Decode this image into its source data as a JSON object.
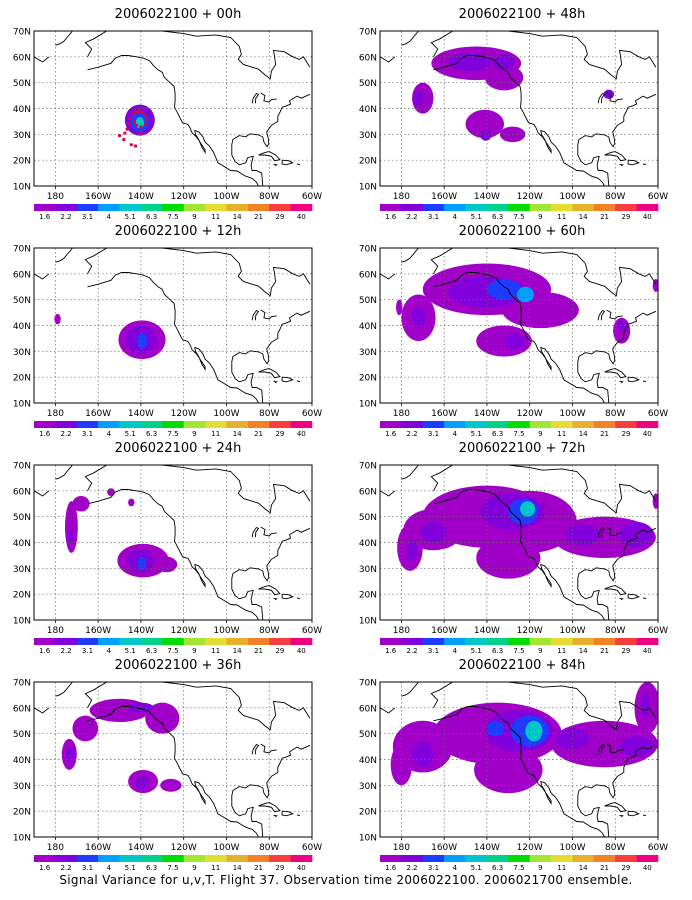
{
  "figure": {
    "caption": "Signal Variance for u,v,T. Flight 37. Observation time 2006022100. 2006021700 ensemble."
  },
  "colorbar": {
    "labels": [
      "1.6",
      "2.2",
      "3.1",
      "4",
      "5.1",
      "6.3",
      "7.5",
      "9",
      "11",
      "14",
      "21",
      "29",
      "40"
    ],
    "colors": [
      "#a000c8",
      "#8200dc",
      "#1e3cff",
      "#00a0ff",
      "#00c8c8",
      "#00d28c",
      "#00dc00",
      "#a0e632",
      "#e6dc32",
      "#e6af2d",
      "#f08228",
      "#fa3c3c",
      "#f00082"
    ]
  },
  "axes": {
    "lat_labels": [
      "10N",
      "20N",
      "30N",
      "40N",
      "50N",
      "60N",
      "70N"
    ],
    "lon_labels": [
      "180",
      "160W",
      "140W",
      "120W",
      "100W",
      "80W",
      "60W"
    ]
  },
  "panels": [
    {
      "id": "00h",
      "title": "2006022100 + 00h",
      "blobs": [
        {
          "lon": -140.5,
          "lat": 35.5,
          "rlon": 7,
          "rlat": 6,
          "level": 1
        },
        {
          "lon": -140.5,
          "lat": 35,
          "rlon": 4.5,
          "rlat": 4,
          "level": 2
        },
        {
          "lon": -140.5,
          "lat": 34.5,
          "rlon": 2,
          "rlat": 2.2,
          "level": 4
        }
      ],
      "obs_points": [
        [
          -148,
          28
        ],
        [
          -147.5,
          30.5
        ],
        [
          -146.5,
          32
        ],
        [
          -145.5,
          34
        ],
        [
          -145,
          36
        ],
        [
          -144,
          37.8
        ],
        [
          -142.5,
          38.5
        ],
        [
          -141,
          38.8
        ],
        [
          -139.5,
          38.5
        ],
        [
          -138,
          37.5
        ],
        [
          -137.5,
          35.8
        ],
        [
          -137.8,
          34
        ],
        [
          -140,
          32.8
        ],
        [
          -142,
          33.5
        ],
        [
          -143,
          35
        ],
        [
          -144.5,
          26
        ],
        [
          -142.5,
          25.5
        ],
        [
          -150,
          29.5
        ],
        [
          -140,
          30.5
        ],
        [
          -141.5,
          39
        ]
      ]
    },
    {
      "id": "12h",
      "title": "2006022100 + 12h",
      "blobs": [
        {
          "lon": -179,
          "lat": 42.5,
          "rlon": 1.5,
          "rlat": 2,
          "level": 0
        },
        {
          "lon": -139.5,
          "lat": 34.5,
          "rlon": 11,
          "rlat": 7.5,
          "level": 0
        },
        {
          "lon": -140,
          "lat": 34.5,
          "rlon": 7,
          "rlat": 5.5,
          "level": 1
        },
        {
          "lon": -139.5,
          "lat": 34,
          "rlon": 2.5,
          "rlat": 3,
          "level": 2
        }
      ]
    },
    {
      "id": "24h",
      "title": "2006022100 + 24h",
      "blobs": [
        {
          "lon": -172.5,
          "lat": 46,
          "rlon": 3,
          "rlat": 10,
          "level": 0
        },
        {
          "lon": -168,
          "lat": 55,
          "rlon": 4,
          "rlat": 3,
          "level": 0
        },
        {
          "lon": -173,
          "lat": 42,
          "rlon": 1.5,
          "rlat": 2.5,
          "level": 1
        },
        {
          "lon": -154,
          "lat": 59.5,
          "rlon": 1.8,
          "rlat": 1.5,
          "level": 0
        },
        {
          "lon": -144.5,
          "lat": 55.5,
          "rlon": 1.5,
          "rlat": 1.5,
          "level": 0
        },
        {
          "lon": -139,
          "lat": 33,
          "rlon": 12,
          "rlat": 6.5,
          "level": 0
        },
        {
          "lon": -128,
          "lat": 31.5,
          "rlon": 5,
          "rlat": 3,
          "level": 0
        },
        {
          "lon": -140,
          "lat": 33,
          "rlon": 6,
          "rlat": 4.5,
          "level": 1
        },
        {
          "lon": -139.5,
          "lat": 32,
          "rlon": 2,
          "rlat": 2.5,
          "level": 2
        }
      ]
    },
    {
      "id": "36h",
      "title": "2006022100 + 36h",
      "blobs": [
        {
          "lon": -173.5,
          "lat": 42,
          "rlon": 3.5,
          "rlat": 6,
          "level": 0
        },
        {
          "lon": -173,
          "lat": 42,
          "rlon": 2,
          "rlat": 3,
          "level": 1
        },
        {
          "lon": -150,
          "lat": 59,
          "rlon": 14,
          "rlat": 4.5,
          "level": 0
        },
        {
          "lon": -130,
          "lat": 56,
          "rlon": 8,
          "rlat": 6,
          "level": 0
        },
        {
          "lon": -166,
          "lat": 52,
          "rlon": 6,
          "rlat": 5,
          "level": 0
        },
        {
          "lon": -140,
          "lat": 60,
          "rlon": 6,
          "rlat": 2,
          "level": 1
        },
        {
          "lon": -139,
          "lat": 31.5,
          "rlon": 7,
          "rlat": 4.5,
          "level": 0
        },
        {
          "lon": -126,
          "lat": 30,
          "rlon": 5,
          "rlat": 2.5,
          "level": 0
        },
        {
          "lon": -139.5,
          "lat": 31,
          "rlon": 3,
          "rlat": 2.5,
          "level": 1
        }
      ]
    },
    {
      "id": "48h",
      "title": "2006022100 + 48h",
      "blobs": [
        {
          "lon": -170,
          "lat": 44,
          "rlon": 5,
          "rlat": 6,
          "level": 0
        },
        {
          "lon": -172,
          "lat": 44,
          "rlon": 2.5,
          "rlat": 3,
          "level": 1
        },
        {
          "lon": -145,
          "lat": 57.5,
          "rlon": 21,
          "rlat": 6.5,
          "level": 0
        },
        {
          "lon": -132,
          "lat": 52,
          "rlon": 9,
          "rlat": 5,
          "level": 0
        },
        {
          "lon": -148,
          "lat": 58,
          "rlon": 10,
          "rlat": 3.5,
          "level": 1
        },
        {
          "lon": -132,
          "lat": 58,
          "rlon": 5,
          "rlat": 3,
          "level": 1
        },
        {
          "lon": -141,
          "lat": 34,
          "rlon": 9,
          "rlat": 5.5,
          "level": 0
        },
        {
          "lon": -128,
          "lat": 30,
          "rlon": 6,
          "rlat": 3,
          "level": 0
        },
        {
          "lon": -140.5,
          "lat": 29.5,
          "rlon": 2.5,
          "rlat": 2,
          "level": 1
        },
        {
          "lon": -83,
          "lat": 45.5,
          "rlon": 2.5,
          "rlat": 1.8,
          "level": 1
        }
      ]
    },
    {
      "id": "60h",
      "title": "2006022100 + 60h",
      "blobs": [
        {
          "lon": -140,
          "lat": 54,
          "rlon": 30,
          "rlat": 10,
          "level": 0
        },
        {
          "lon": -115,
          "lat": 46,
          "rlon": 18,
          "rlat": 7,
          "level": 0
        },
        {
          "lon": -172,
          "lat": 43,
          "rlon": 8,
          "rlat": 9,
          "level": 0
        },
        {
          "lon": -140,
          "lat": 53,
          "rlon": 18,
          "rlat": 6,
          "level": 1
        },
        {
          "lon": -132,
          "lat": 54,
          "rlon": 8,
          "rlat": 4,
          "level": 2
        },
        {
          "lon": -122,
          "lat": 52,
          "rlon": 4,
          "rlat": 3,
          "level": 3
        },
        {
          "lon": -172,
          "lat": 43,
          "rlon": 3,
          "rlat": 4,
          "level": 1
        },
        {
          "lon": -132,
          "lat": 34,
          "rlon": 13,
          "rlat": 6,
          "level": 0
        },
        {
          "lon": -127,
          "lat": 34,
          "rlon": 5,
          "rlat": 3,
          "level": 1
        },
        {
          "lon": -77,
          "lat": 38,
          "rlon": 4,
          "rlat": 5,
          "level": 0
        },
        {
          "lon": -77,
          "lat": 40,
          "rlon": 2,
          "rlat": 2,
          "level": 1
        },
        {
          "lon": -61,
          "lat": 55.5,
          "rlon": 1.5,
          "rlat": 2.5,
          "level": 0
        },
        {
          "lon": -181,
          "lat": 47,
          "rlon": 1.5,
          "rlat": 3,
          "level": 0
        }
      ]
    },
    {
      "id": "72h",
      "title": "2006022100 + 72h",
      "blobs": [
        {
          "lon": -140,
          "lat": 50,
          "rlon": 30,
          "rlat": 12,
          "level": 0
        },
        {
          "lon": -120,
          "lat": 48,
          "rlon": 22,
          "rlat": 12,
          "level": 0
        },
        {
          "lon": -165,
          "lat": 45,
          "rlon": 14,
          "rlat": 8,
          "level": 0
        },
        {
          "lon": -176,
          "lat": 38,
          "rlon": 6,
          "rlat": 9,
          "level": 0
        },
        {
          "lon": -85,
          "lat": 42,
          "rlon": 24,
          "rlat": 8,
          "level": 0
        },
        {
          "lon": -130,
          "lat": 34,
          "rlon": 15,
          "rlat": 8,
          "level": 0
        },
        {
          "lon": -128,
          "lat": 52,
          "rlon": 15,
          "rlat": 7,
          "level": 1
        },
        {
          "lon": -123,
          "lat": 52,
          "rlon": 7,
          "rlat": 5,
          "level": 2
        },
        {
          "lon": -121,
          "lat": 53,
          "rlon": 3.5,
          "rlat": 3,
          "level": 4
        },
        {
          "lon": -165,
          "lat": 44,
          "rlon": 6,
          "rlat": 4,
          "level": 1
        },
        {
          "lon": -175,
          "lat": 37,
          "rlon": 2.5,
          "rlat": 4,
          "level": 1
        },
        {
          "lon": -95,
          "lat": 43,
          "rlon": 8,
          "rlat": 4,
          "level": 1
        },
        {
          "lon": -70,
          "lat": 43,
          "rlon": 8,
          "rlat": 5,
          "level": 1
        },
        {
          "lon": -61,
          "lat": 56,
          "rlon": 1.5,
          "rlat": 3,
          "level": 0
        }
      ]
    },
    {
      "id": "84h",
      "title": "2006022100 + 84h",
      "blobs": [
        {
          "lon": -135,
          "lat": 50,
          "rlon": 30,
          "rlat": 12,
          "level": 0
        },
        {
          "lon": -170,
          "lat": 45,
          "rlon": 14,
          "rlat": 10,
          "level": 0
        },
        {
          "lon": -130,
          "lat": 36,
          "rlon": 16,
          "rlat": 9,
          "level": 0
        },
        {
          "lon": -85,
          "lat": 46,
          "rlon": 25,
          "rlat": 9,
          "level": 0
        },
        {
          "lon": -180,
          "lat": 38,
          "rlon": 5,
          "rlat": 8,
          "level": 0
        },
        {
          "lon": -65,
          "lat": 60,
          "rlon": 6,
          "rlat": 10,
          "level": 0
        },
        {
          "lon": -125,
          "lat": 51,
          "rlon": 16,
          "rlat": 8,
          "level": 1
        },
        {
          "lon": -120,
          "lat": 51,
          "rlon": 9,
          "rlat": 6,
          "level": 2
        },
        {
          "lon": -118,
          "lat": 51,
          "rlon": 4,
          "rlat": 4,
          "level": 4
        },
        {
          "lon": -170,
          "lat": 42,
          "rlon": 5,
          "rlat": 5,
          "level": 1
        },
        {
          "lon": -100,
          "lat": 48,
          "rlon": 8,
          "rlat": 4,
          "level": 1
        },
        {
          "lon": -70,
          "lat": 45,
          "rlon": 8,
          "rlat": 4,
          "level": 1
        },
        {
          "lon": -136,
          "lat": 52,
          "rlon": 4,
          "rlat": 3,
          "level": 2
        },
        {
          "lon": -66,
          "lat": 61,
          "rlon": 2,
          "rlat": 5,
          "level": 1
        }
      ]
    }
  ]
}
